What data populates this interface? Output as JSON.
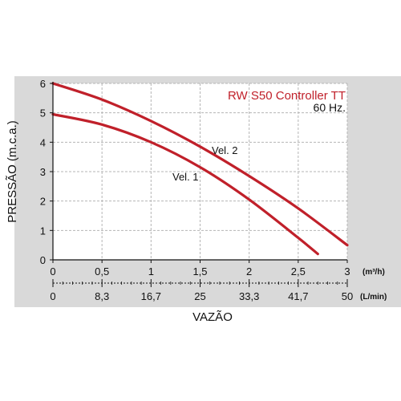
{
  "chart_data": {
    "type": "line",
    "title": "RW S50 Controller TT",
    "subtitle": "60 Hz.",
    "ylabel": "PRESSÃO (m.c.a.)",
    "xlabel": "VAZÃO",
    "xlim": [
      0,
      3
    ],
    "ylim": [
      0,
      6
    ],
    "grid": true,
    "x_ticks": [
      "0",
      "0,5",
      "1",
      "1,5",
      "2",
      "2,5",
      "3"
    ],
    "x_unit": "(m³/h)",
    "x_ticks_secondary": [
      "0",
      "8,3",
      "16,7",
      "25",
      "33,3",
      "41,7",
      "50"
    ],
    "x_unit_secondary": "(L/min)",
    "y_ticks": [
      "0",
      "1",
      "2",
      "3",
      "4",
      "5",
      "6"
    ],
    "series": [
      {
        "name": "Vel. 2",
        "x": [
          0,
          0.5,
          1,
          1.5,
          2,
          2.5,
          3
        ],
        "y": [
          6.0,
          5.45,
          4.72,
          3.85,
          2.85,
          1.75,
          0.5
        ]
      },
      {
        "name": "Vel. 1",
        "x": [
          0,
          0.5,
          1,
          1.5,
          2,
          2.5,
          2.7
        ],
        "y": [
          4.95,
          4.6,
          4.0,
          3.15,
          2.05,
          0.75,
          0.2
        ]
      }
    ],
    "colors": {
      "line": "#c0202a",
      "title": "#c0202a",
      "panel": "#d9d9d9",
      "grid": "#b5b5b5",
      "axis": "#111111"
    }
  }
}
